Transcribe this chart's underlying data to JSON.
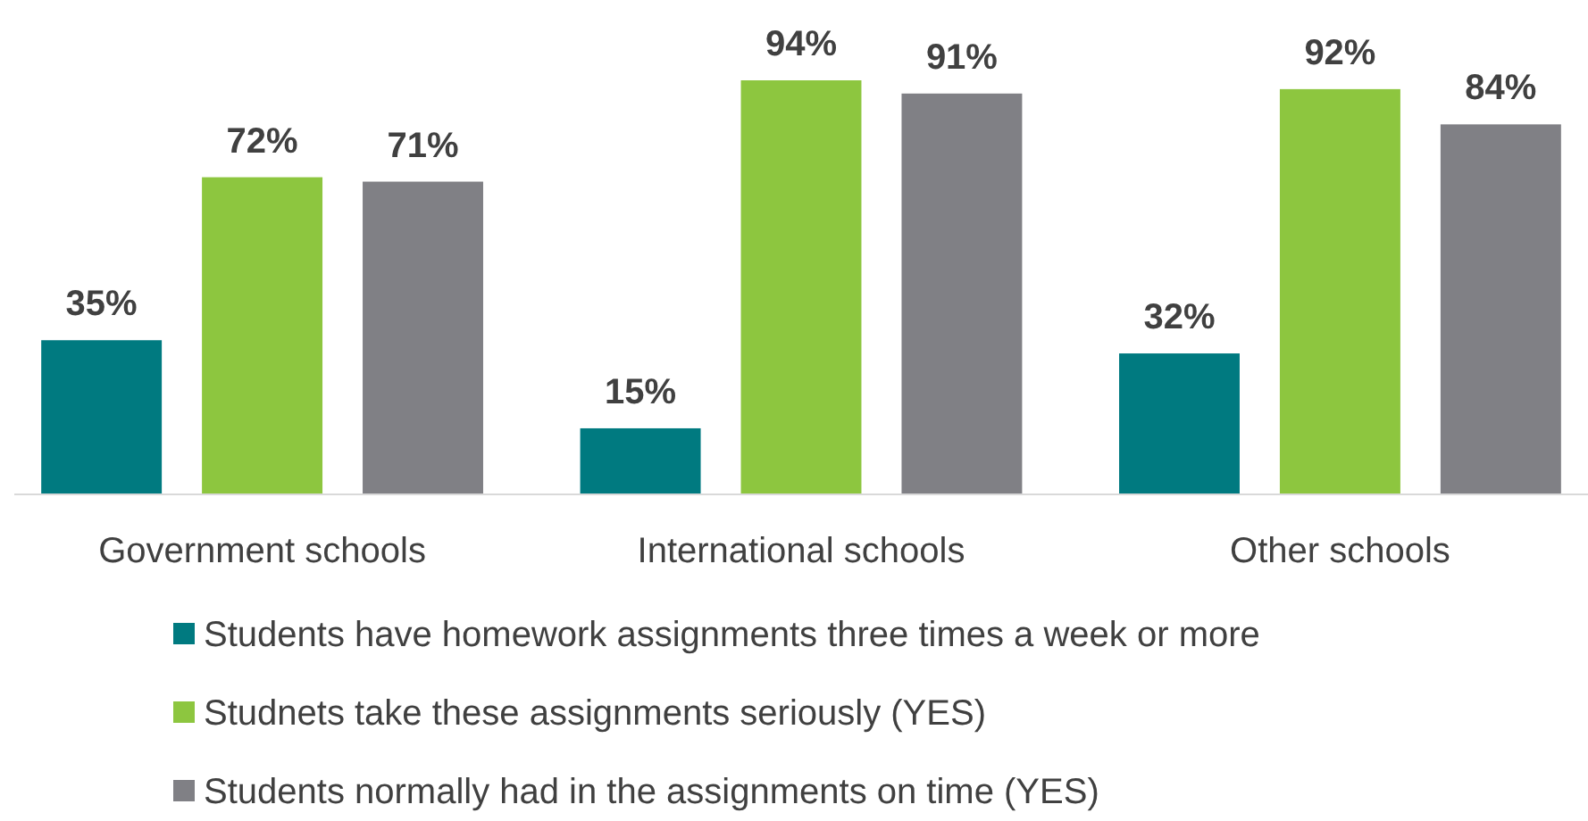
{
  "chart_data": {
    "type": "bar",
    "categories": [
      "Government schools",
      "International schools",
      "Other schools"
    ],
    "series": [
      {
        "name": "Students have homework assignments three times a week or more",
        "color": "#007a80",
        "values": [
          35,
          15,
          32
        ],
        "value_labels": [
          "35%",
          "15%",
          "32%"
        ]
      },
      {
        "name": "Studnets take these assignments seriously (YES)",
        "color": "#8dc63f",
        "values": [
          72,
          94,
          92
        ],
        "value_labels": [
          "72%",
          "94%",
          "92%"
        ]
      },
      {
        "name": "Students normally had in the assignments on time (YES)",
        "color": "#808085",
        "values": [
          71,
          91,
          84
        ],
        "value_labels": [
          "71%",
          "91%",
          "84%"
        ]
      }
    ],
    "legend": "bottom"
  }
}
